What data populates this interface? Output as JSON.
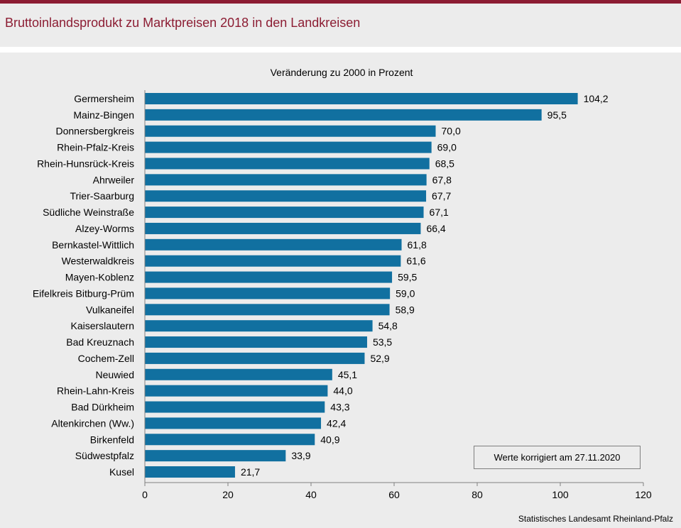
{
  "header": {
    "title": "Bruttoinlandsprodukt zu Marktpreisen 2018 in den Landkreisen"
  },
  "colors": {
    "accent": "#8c1d33",
    "bar": "#1170a0",
    "background": "#ececec"
  },
  "chart_data": {
    "type": "bar",
    "orientation": "horizontal",
    "title": "Veränderung  zu 2000 in Prozent",
    "categories": [
      "Germersheim",
      "Mainz-Bingen",
      "Donnersbergkreis",
      "Rhein-Pfalz-Kreis",
      "Rhein-Hunsrück-Kreis",
      "Ahrweiler",
      "Trier-Saarburg",
      "Südliche Weinstraße",
      "Alzey-Worms",
      "Bernkastel-Wittlich",
      "Westerwaldkreis",
      "Mayen-Koblenz",
      "Eifelkreis Bitburg-Prüm",
      "Vulkaneifel",
      "Kaiserslautern",
      "Bad Kreuznach",
      "Cochem-Zell",
      "Neuwied",
      "Rhein-Lahn-Kreis",
      "Bad Dürkheim",
      "Altenkirchen (Ww.)",
      "Birkenfeld",
      "Südwestpfalz",
      "Kusel"
    ],
    "values": [
      104.2,
      95.5,
      70.0,
      69.0,
      68.5,
      67.8,
      67.7,
      67.1,
      66.4,
      61.8,
      61.6,
      59.5,
      59.0,
      58.9,
      54.8,
      53.5,
      52.9,
      45.1,
      44.0,
      43.3,
      42.4,
      40.9,
      33.9,
      21.7
    ],
    "value_labels": [
      "104,2",
      "95,5",
      "70,0",
      "69,0",
      "68,5",
      "67,8",
      "67,7",
      "67,1",
      "66,4",
      "61,8",
      "61,6",
      "59,5",
      "59,0",
      "58,9",
      "54,8",
      "53,5",
      "52,9",
      "45,1",
      "44,0",
      "43,3",
      "42,4",
      "40,9",
      "33,9",
      "21,7"
    ],
    "xlim": [
      0,
      120
    ],
    "xticks": [
      0,
      20,
      40,
      60,
      80,
      100,
      120
    ],
    "xlabel": "",
    "ylabel": "",
    "grid": false
  },
  "note": "Werte korrigiert am 27.11.2020",
  "source": "Statistisches Landesamt  Rheinland-Pfalz"
}
